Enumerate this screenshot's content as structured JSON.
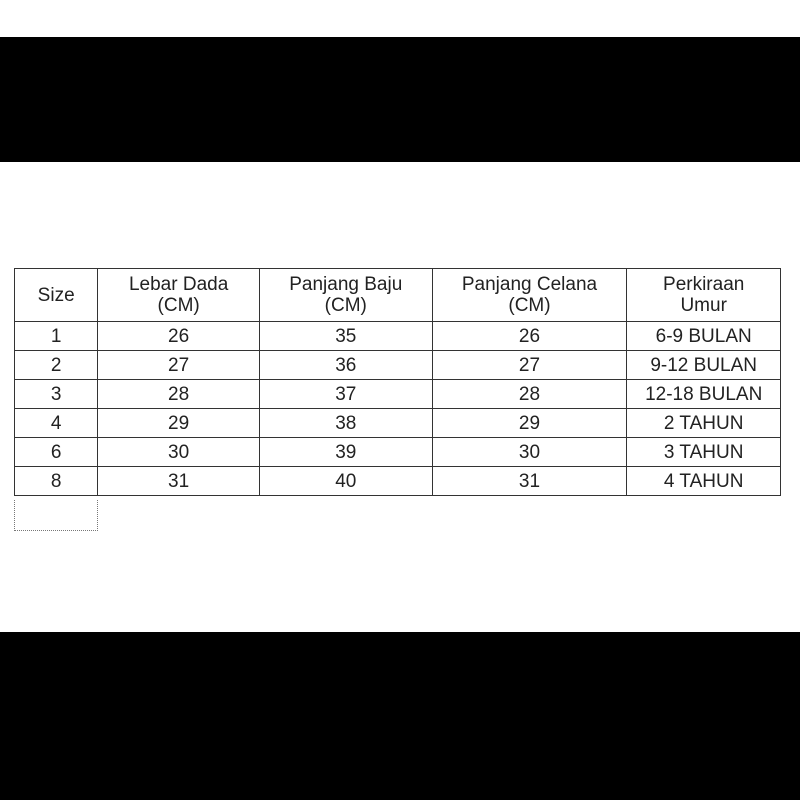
{
  "table": {
    "headers": [
      {
        "line1": "Size",
        "line2": ""
      },
      {
        "line1": "Lebar Dada",
        "line2": "(CM)"
      },
      {
        "line1": "Panjang Baju",
        "line2": "(CM)"
      },
      {
        "line1": "Panjang Celana",
        "line2": "(CM)"
      },
      {
        "line1": "Perkiraan",
        "line2": "Umur"
      }
    ],
    "rows": [
      [
        "1",
        "26",
        "35",
        "26",
        "6-9 BULAN"
      ],
      [
        "2",
        "27",
        "36",
        "27",
        "9-12 BULAN"
      ],
      [
        "3",
        "28",
        "37",
        "28",
        "12-18 BULAN"
      ],
      [
        "4",
        "29",
        "38",
        "29",
        "2 TAHUN"
      ],
      [
        "6",
        "30",
        "39",
        "30",
        "3 TAHUN"
      ],
      [
        "8",
        "31",
        "40",
        "31",
        "4 TAHUN"
      ]
    ]
  }
}
